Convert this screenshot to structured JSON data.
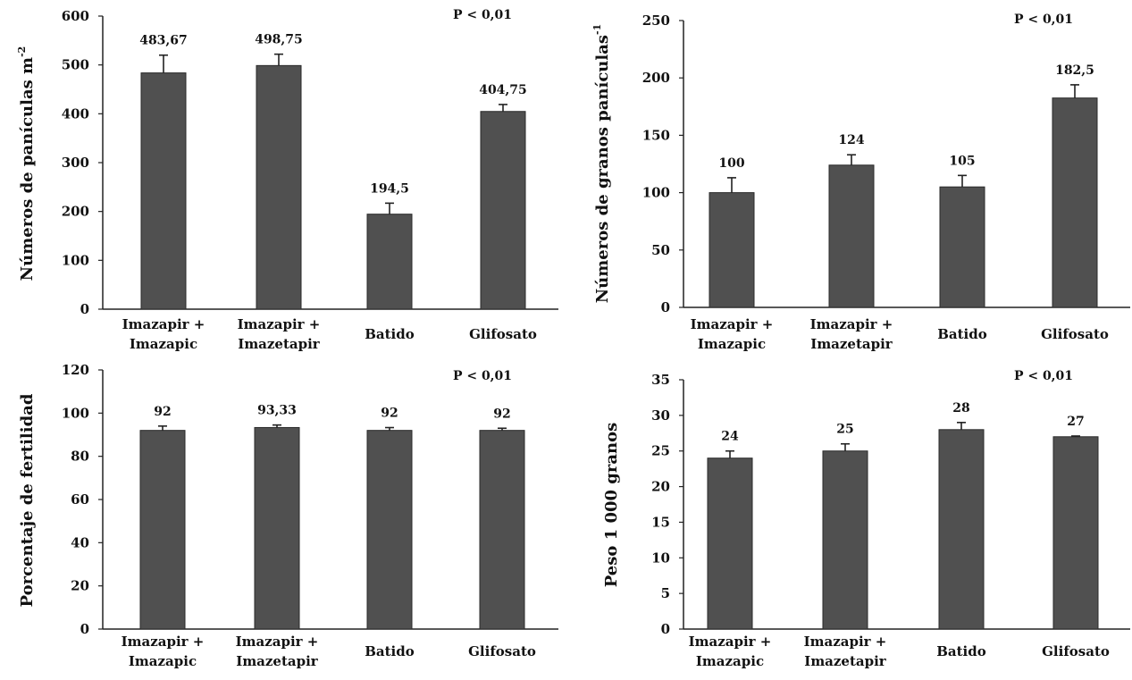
{
  "chart_data": [
    {
      "type": "bar",
      "categories": [
        [
          "Imazapir +",
          "Imazapic"
        ],
        [
          "Imazapir +",
          "Imazetapir"
        ],
        [
          "Batido"
        ],
        [
          "Glifosato"
        ]
      ],
      "values": [
        483.67,
        498.75,
        194.5,
        404.75
      ],
      "value_labels": [
        "483,67",
        "498,75",
        "194,5",
        "404,75"
      ],
      "error_upper": [
        520,
        522,
        217,
        419
      ],
      "ylabel": "Números de panículas m",
      "ylabel_sup": "-2",
      "ylim": [
        0,
        600
      ],
      "yticks": [
        0,
        100,
        200,
        300,
        400,
        500,
        600
      ],
      "annotation": "P < 0,01",
      "bar_color": "#505050",
      "grid": false
    },
    {
      "type": "bar",
      "categories": [
        [
          "Imazapir +",
          "Imazapic"
        ],
        [
          "Imazapir +",
          "Imazetapir"
        ],
        [
          "Batido"
        ],
        [
          "Glifosato"
        ]
      ],
      "values": [
        100,
        124,
        105,
        182.5
      ],
      "value_labels": [
        "100",
        "124",
        "105",
        "182,5"
      ],
      "error_upper": [
        113,
        133,
        115,
        194
      ],
      "ylabel": "Números de granos panículas",
      "ylabel_sup": "-1",
      "ylim": [
        0,
        250
      ],
      "yticks": [
        0,
        50,
        100,
        150,
        200,
        250
      ],
      "annotation": "P < 0,01",
      "bar_color": "#505050",
      "grid": false
    },
    {
      "type": "bar",
      "categories": [
        [
          "Imazapir +",
          "Imazapic"
        ],
        [
          "Imazapir +",
          "Imazetapir"
        ],
        [
          "Batido"
        ],
        [
          "Glifosato"
        ]
      ],
      "values": [
        92,
        93.33,
        92,
        92
      ],
      "value_labels": [
        "92",
        "93,33",
        "92",
        "92"
      ],
      "error_upper": [
        94,
        94.5,
        93.3,
        93
      ],
      "ylabel": "Porcentaje de fertilidad",
      "ylabel_sup": "",
      "ylim": [
        0,
        120
      ],
      "yticks": [
        0,
        20,
        40,
        60,
        80,
        100,
        120
      ],
      "annotation": "P < 0,01",
      "bar_color": "#505050",
      "grid": false
    },
    {
      "type": "bar",
      "categories": [
        [
          "Imazapir +",
          "Imazapic"
        ],
        [
          "Imazapir +",
          "Imazetapir"
        ],
        [
          "Batido"
        ],
        [
          "Glifosato"
        ]
      ],
      "values": [
        24,
        25,
        28,
        27
      ],
      "value_labels": [
        "24",
        "25",
        "28",
        "27"
      ],
      "error_upper": [
        25,
        26,
        29,
        27.1
      ],
      "ylabel": "Peso 1 000 granos",
      "ylabel_sup": "",
      "ylim": [
        0,
        35
      ],
      "yticks": [
        0,
        5,
        10,
        15,
        20,
        25,
        30,
        35
      ],
      "annotation": "P < 0,01",
      "bar_color": "#505050",
      "grid": false
    }
  ]
}
